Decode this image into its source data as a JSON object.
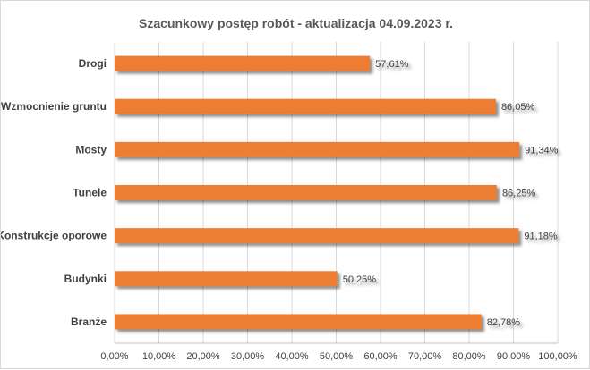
{
  "chart_data": {
    "type": "bar",
    "orientation": "horizontal",
    "title": "Szacunkowy postęp robót - aktualizacja 04.09.2023 r.",
    "categories": [
      "Drogi",
      "Wzmocnienie gruntu",
      "Mosty",
      "Tunele",
      "Konstrukcje oporowe",
      "Budynki",
      "Branże"
    ],
    "values": [
      57.61,
      86.05,
      91.34,
      86.25,
      91.18,
      50.25,
      82.78
    ],
    "data_labels": [
      "57,61%",
      "86,05%",
      "91,34%",
      "86,25%",
      "91,18%",
      "50,25%",
      "82,78%"
    ],
    "x_ticks": [
      0,
      10,
      20,
      30,
      40,
      50,
      60,
      70,
      80,
      90,
      100
    ],
    "x_tick_labels": [
      "0,00%",
      "10,00%",
      "20,00%",
      "30,00%",
      "40,00%",
      "50,00%",
      "60,00%",
      "70,00%",
      "80,00%",
      "90,00%",
      "100,00%"
    ],
    "xlim": [
      0,
      100
    ],
    "grid": "vertical",
    "legend": "none",
    "bar_color": "#ED7D31",
    "grid_color": "#D9D9D9"
  }
}
